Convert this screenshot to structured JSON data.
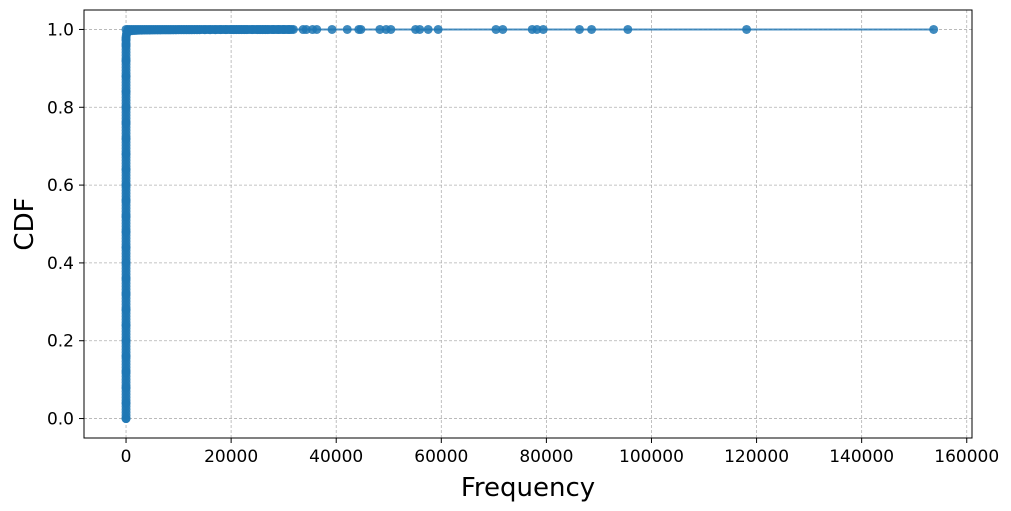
{
  "chart_data": {
    "type": "line",
    "title": "",
    "xlabel": "Frequency",
    "ylabel": "CDF",
    "xlim": [
      -8000,
      161000
    ],
    "ylim": [
      -0.05,
      1.05
    ],
    "grid": true,
    "marker": "circle",
    "color": "#1f77b4",
    "xticks": [
      0,
      20000,
      40000,
      60000,
      80000,
      100000,
      120000,
      140000,
      160000
    ],
    "xtick_labels": [
      "0",
      "20000",
      "40000",
      "60000",
      "80000",
      "100000",
      "120000",
      "140000",
      "160000"
    ],
    "yticks": [
      0.0,
      0.2,
      0.4,
      0.6,
      0.8,
      1.0
    ],
    "ytick_labels": [
      "0.0",
      "0.2",
      "0.4",
      "0.6",
      "0.8",
      "1.0"
    ],
    "series": [
      {
        "name": "CDF",
        "x": [
          0,
          0,
          0,
          0,
          0,
          0,
          0,
          0,
          0,
          0,
          0,
          0,
          0,
          0,
          0,
          0,
          0,
          0,
          0,
          0,
          0,
          0,
          0,
          0,
          0,
          0,
          50,
          100,
          200,
          400,
          600,
          800,
          1200,
          1600,
          2000,
          2500,
          3000,
          3500,
          4000,
          4500,
          5000,
          5500,
          6000,
          6500,
          7000,
          7500,
          8000,
          8500,
          9000,
          9500,
          10000,
          10500,
          11000,
          11500,
          12000,
          12500,
          13000,
          13500,
          14000,
          15000,
          16000,
          17000,
          18000,
          19000,
          20000,
          20500,
          21000,
          21500,
          22000,
          22500,
          23000,
          24000,
          25000,
          25500,
          26000,
          26500,
          27000,
          28000,
          29000,
          30000,
          31000,
          33700,
          34300,
          35500,
          36300,
          39200,
          42100,
          44300,
          44700,
          48300,
          49500,
          50400,
          55100,
          55900,
          57500,
          59400,
          70400,
          71700,
          77300,
          78200,
          79400,
          86300,
          88600,
          95500,
          118100,
          153700
        ],
        "y": [
          0.0,
          0.04,
          0.08,
          0.12,
          0.16,
          0.2,
          0.24,
          0.28,
          0.32,
          0.36,
          0.4,
          0.44,
          0.48,
          0.52,
          0.56,
          0.6,
          0.64,
          0.68,
          0.72,
          0.76,
          0.8,
          0.84,
          0.88,
          0.92,
          0.96,
          0.975,
          0.985,
          0.99,
          0.993,
          0.995,
          0.996,
          0.9965,
          0.997,
          0.9973,
          0.9976,
          0.9978,
          0.998,
          0.9982,
          0.9983,
          0.9984,
          0.9985,
          0.9986,
          0.9987,
          0.9987,
          0.9988,
          0.9988,
          0.9989,
          0.9989,
          0.999,
          0.999,
          0.9991,
          0.9991,
          0.9991,
          0.9992,
          0.9992,
          0.9992,
          0.9993,
          0.9993,
          0.9993,
          0.9994,
          0.9994,
          0.9994,
          0.9995,
          0.9995,
          0.9995,
          0.9995,
          0.9996,
          0.9996,
          0.9996,
          0.9996,
          0.9996,
          0.9997,
          0.9997,
          0.9997,
          0.9997,
          0.9997,
          0.9997,
          0.9998,
          0.9998,
          0.9998,
          0.9998,
          0.9998,
          0.9998,
          0.9998,
          0.9999,
          0.9999,
          0.9999,
          0.9999,
          0.9999,
          0.9999,
          0.9999,
          0.9999,
          0.9999,
          0.9999,
          0.9999,
          0.9999,
          1.0,
          1.0,
          1.0,
          1.0,
          1.0,
          1.0,
          1.0,
          1.0,
          1.0,
          1.0
        ]
      }
    ]
  }
}
